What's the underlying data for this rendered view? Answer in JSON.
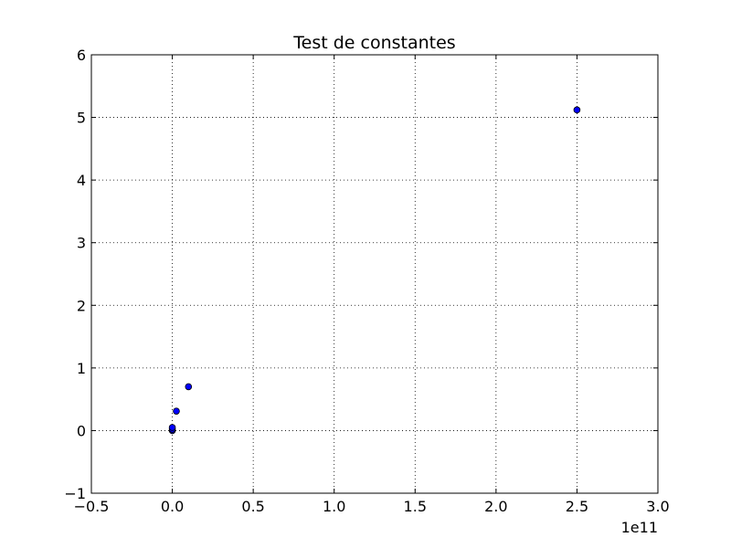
{
  "chart_data": {
    "type": "scatter",
    "title": "Test de constantes",
    "xlabel": "",
    "ylabel": "",
    "x_offset_label": "1e11",
    "xlim": [
      -0.5,
      3.0
    ],
    "ylim": [
      -1,
      6
    ],
    "xticks": [
      -0.5,
      0.0,
      0.5,
      1.0,
      1.5,
      2.0,
      2.5,
      3.0
    ],
    "xtick_labels": [
      "−0.5",
      "0.0",
      "0.5",
      "1.0",
      "1.5",
      "2.0",
      "2.5",
      "3.0"
    ],
    "yticks": [
      -1,
      0,
      1,
      2,
      3,
      4,
      5,
      6
    ],
    "ytick_labels": [
      "−1",
      "0",
      "1",
      "2",
      "3",
      "4",
      "5",
      "6"
    ],
    "grid": true,
    "series": [
      {
        "marker_color": "#0000ff",
        "edge_color": "#000000",
        "points": [
          {
            "x": 0.0,
            "y": 0.0
          },
          {
            "x": 0.0,
            "y": 0.02
          },
          {
            "x": 0.0,
            "y": 0.05
          },
          {
            "x": 0.025,
            "y": 0.31
          },
          {
            "x": 0.1,
            "y": 0.7
          },
          {
            "x": 2.5,
            "y": 5.12
          }
        ]
      }
    ]
  }
}
